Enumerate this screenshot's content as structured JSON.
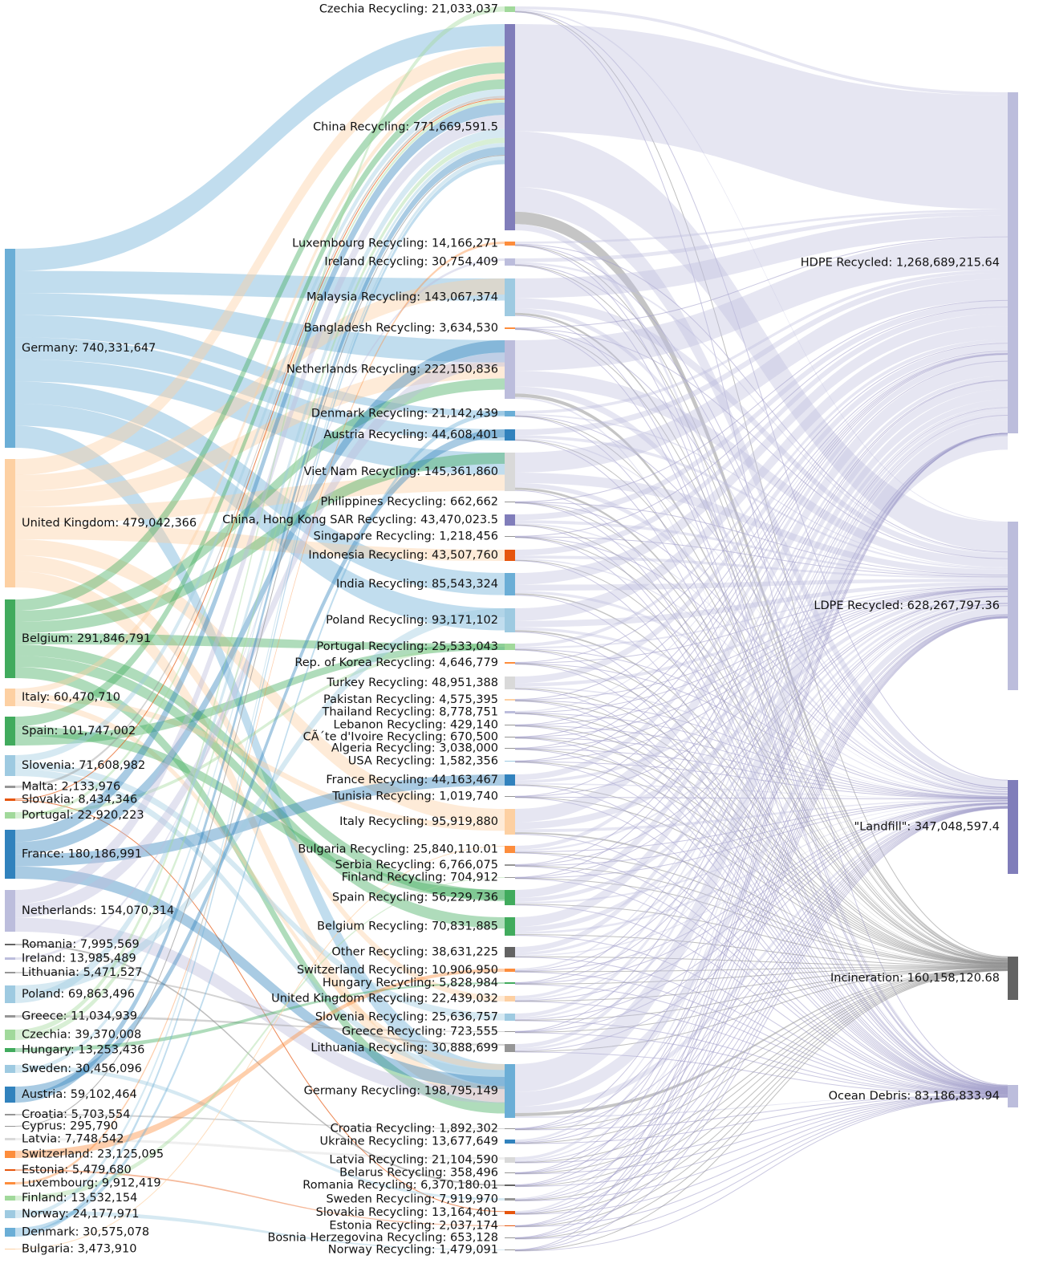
{
  "colors": {
    "blue": "#6baed6",
    "peach": "#fdd0a2",
    "green": "#41ab5d",
    "lightgreen": "#a1d99b",
    "purple": "#807dba",
    "lightpurple": "#bcbddc",
    "grey": "#969696",
    "lightgrey": "#d9d9d9",
    "orange": "#fd8d3c",
    "darkorange": "#e6550d",
    "darkblue": "#3182bd",
    "lightblue": "#9ecae1",
    "darkgrey": "#636363"
  },
  "diagram": {
    "sources": [
      {
        "label": "Germany: 740,331,647",
        "color": "blue"
      },
      {
        "label": "United Kingdom: 479,042,366",
        "color": "peach"
      },
      {
        "label": "Belgium: 291,846,791",
        "color": "green"
      },
      {
        "label": "Italy: 60,470,710",
        "color": "peach"
      },
      {
        "label": "Spain: 101,747,002",
        "color": "green"
      },
      {
        "label": "Slovenia: 71,608,982",
        "color": "lightblue"
      },
      {
        "label": "Malta: 2,133,976",
        "color": "grey"
      },
      {
        "label": "Slovakia: 8,434,346",
        "color": "darkorange"
      },
      {
        "label": "Portugal: 22,920,223",
        "color": "lightgreen"
      },
      {
        "label": "France: 180,186,991",
        "color": "darkblue"
      },
      {
        "label": "Netherlands: 154,070,314",
        "color": "lightpurple"
      },
      {
        "label": "Romania: 7,995,569",
        "color": "darkgrey"
      },
      {
        "label": "Ireland: 13,985,489",
        "color": "lightpurple"
      },
      {
        "label": "Lithuania: 5,471,527",
        "color": "grey"
      },
      {
        "label": "Poland: 69,863,496",
        "color": "lightblue"
      },
      {
        "label": "Greece: 11,034,939",
        "color": "grey"
      },
      {
        "label": "Czechia: 39,370,008",
        "color": "lightgreen"
      },
      {
        "label": "Hungary: 13,253,436",
        "color": "green"
      },
      {
        "label": "Sweden: 30,456,096",
        "color": "lightblue"
      },
      {
        "label": "Austria: 59,102,464",
        "color": "darkblue"
      },
      {
        "label": "Croatia: 5,703,554",
        "color": "grey"
      },
      {
        "label": "Cyprus: 295,790",
        "color": "grey"
      },
      {
        "label": "Latvia: 7,748,542",
        "color": "lightgrey"
      },
      {
        "label": "Switzerland: 23,125,095",
        "color": "orange"
      },
      {
        "label": "Estonia: 5,479,680",
        "color": "darkorange"
      },
      {
        "label": "Luxembourg: 9,912,419",
        "color": "orange"
      },
      {
        "label": "Finland: 13,532,154",
        "color": "lightgreen"
      },
      {
        "label": "Norway: 24,177,971",
        "color": "lightblue"
      },
      {
        "label": "Denmark: 30,575,078",
        "color": "blue"
      },
      {
        "label": "Bulgaria: 3,473,910",
        "color": "peach"
      }
    ],
    "middle": [
      {
        "label": "Czechia Recycling: 21,033,037",
        "color": "lightgreen"
      },
      {
        "label": "China Recycling: 771,669,591.5",
        "color": "purple"
      },
      {
        "label": "Luxembourg Recycling: 14,166,271",
        "color": "orange"
      },
      {
        "label": "Ireland Recycling: 30,754,409",
        "color": "lightpurple"
      },
      {
        "label": "Malaysia Recycling: 143,067,374",
        "color": "lightblue"
      },
      {
        "label": "Bangladesh Recycling: 3,634,530",
        "color": "orange"
      },
      {
        "label": "Netherlands Recycling: 222,150,836",
        "color": "lightpurple"
      },
      {
        "label": "Denmark Recycling: 21,142,439",
        "color": "blue"
      },
      {
        "label": "Austria Recycling: 44,608,401",
        "color": "darkblue"
      },
      {
        "label": "Viet Nam Recycling: 145,361,860",
        "color": "lightgrey"
      },
      {
        "label": "Philippines Recycling: 662,662",
        "color": "grey"
      },
      {
        "label": "China, Hong Kong SAR Recycling: 43,470,023.5",
        "color": "purple"
      },
      {
        "label": "Singapore Recycling: 1,218,456",
        "color": "grey"
      },
      {
        "label": "Indonesia Recycling: 43,507,760",
        "color": "darkorange"
      },
      {
        "label": "India Recycling: 85,543,324",
        "color": "blue"
      },
      {
        "label": "Poland Recycling: 93,171,102",
        "color": "lightblue"
      },
      {
        "label": "Portugal Recycling: 25,533,043",
        "color": "lightgreen"
      },
      {
        "label": "Rep. of Korea Recycling: 4,646,779",
        "color": "orange"
      },
      {
        "label": "Turkey Recycling: 48,951,388",
        "color": "lightgrey"
      },
      {
        "label": "Pakistan Recycling: 4,575,395",
        "color": "peach"
      },
      {
        "label": "Thailand Recycling: 8,778,751",
        "color": "lightpurple"
      },
      {
        "label": "Lebanon Recycling: 429,140",
        "color": "grey"
      },
      {
        "label": "CÃ´te d'Ivoire Recycling: 670,500",
        "color": "grey"
      },
      {
        "label": "Algeria Recycling: 3,038,000",
        "color": "grey"
      },
      {
        "label": "USA Recycling: 1,582,356",
        "color": "lightblue"
      },
      {
        "label": "France Recycling: 44,163,467",
        "color": "darkblue"
      },
      {
        "label": "Tunisia Recycling: 1,019,740",
        "color": "grey"
      },
      {
        "label": "Italy Recycling: 95,919,880",
        "color": "peach"
      },
      {
        "label": "Bulgaria Recycling: 25,840,110.01",
        "color": "orange"
      },
      {
        "label": "Serbia Recycling: 6,766,075",
        "color": "grey"
      },
      {
        "label": "Finland Recycling: 704,912",
        "color": "grey"
      },
      {
        "label": "Spain Recycling: 56,229,736",
        "color": "green"
      },
      {
        "label": "Belgium Recycling: 70,831,885",
        "color": "green"
      },
      {
        "label": "Other Recycling: 38,631,225",
        "color": "darkgrey"
      },
      {
        "label": "Switzerland Recycling: 10,906,950",
        "color": "orange"
      },
      {
        "label": "Hungary Recycling: 5,828,984",
        "color": "green"
      },
      {
        "label": "United Kingdom Recycling: 22,439,032",
        "color": "peach"
      },
      {
        "label": "Slovenia Recycling: 25,636,757",
        "color": "lightblue"
      },
      {
        "label": "Greece Recycling: 723,555",
        "color": "grey"
      },
      {
        "label": "Lithuania Recycling: 30,888,699",
        "color": "grey"
      },
      {
        "label": "Germany Recycling: 198,795,149",
        "color": "blue"
      },
      {
        "label": "Croatia Recycling: 1,892,302",
        "color": "grey"
      },
      {
        "label": "Ukraine Recycling: 13,677,649",
        "color": "darkblue"
      },
      {
        "label": "Latvia Recycling: 21,104,590",
        "color": "lightgrey"
      },
      {
        "label": "Belarus Recycling: 358,496",
        "color": "grey"
      },
      {
        "label": "Romania Recycling: 6,370,180.01",
        "color": "darkgrey"
      },
      {
        "label": "Sweden Recycling: 7,919,970",
        "color": "grey"
      },
      {
        "label": "Slovakia Recycling: 13,164,401",
        "color": "darkorange"
      },
      {
        "label": "Estonia Recycling: 2,037,174",
        "color": "darkorange"
      },
      {
        "label": "Bosnia Herzegovina Recycling: 653,128",
        "color": "grey"
      },
      {
        "label": "Norway Recycling: 1,479,091",
        "color": "grey"
      }
    ],
    "outcomes": [
      {
        "label": "HDPE Recycled: 1,268,689,215.64",
        "color": "lightpurple"
      },
      {
        "label": "LDPE Recycled: 628,267,797.36",
        "color": "lightpurple"
      },
      {
        "label": "\"Landfill\": 347,048,597.4",
        "color": "purple"
      },
      {
        "label": "Incineration: 160,158,120.68",
        "color": "darkgrey"
      },
      {
        "label": "Ocean Debris: 83,186,833.94",
        "color": "lightpurple"
      }
    ]
  }
}
